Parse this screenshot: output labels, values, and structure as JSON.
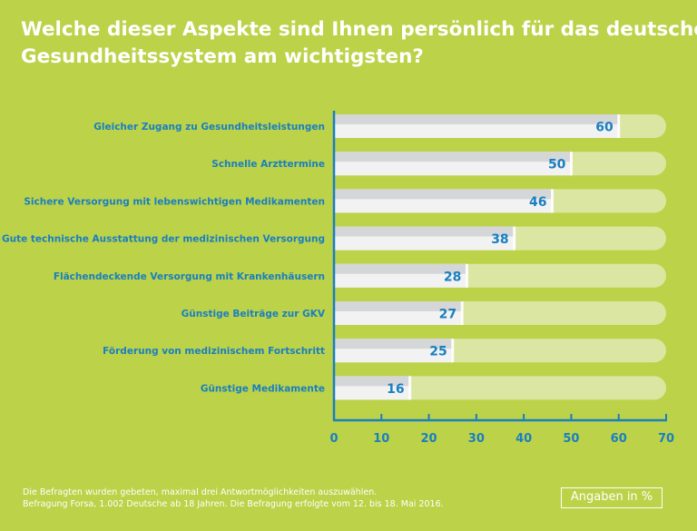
{
  "title": {
    "line1": "Welche dieser Aspekte sind Ihnen persönlich für das deutsche",
    "line2": "Gesundheitssystem am wichtigsten?"
  },
  "footnote": {
    "line1": "Die Befragten wurden gebeten, maximal drei Antwortmöglichkeiten auszuwählen.",
    "line2": "Befragung Forsa, 1.002 Deutsche ab 18 Jahren. Die Befragung erfolgte vom 12. bis 18. Mai 2016."
  },
  "units_label": "Angaben in %",
  "colors": {
    "background": "#bcd248",
    "label_text": "#1a7fc1",
    "axis": "#1a7fc1",
    "bar_fill": "#f2f2f2",
    "bar_stripe": "#d4d6d8",
    "track": "#dbe6a2",
    "title_text": "#ffffff"
  },
  "chart_data": {
    "type": "bar",
    "orientation": "horizontal",
    "categories": [
      "Gleicher Zugang zu Gesundheitsleistungen",
      "Schnelle Arzttermine",
      "Sichere Versorgung mit lebenswichtigen Medikamenten",
      "Gute technische Ausstattung der medizinischen Versorgung",
      "Flächendeckende Versorgung mit Krankenhäusern",
      "Günstige Beiträge zur GKV",
      "Förderung von medizinischem Fortschritt",
      "Günstige Medikamente"
    ],
    "values": [
      60,
      50,
      46,
      38,
      28,
      27,
      25,
      16
    ],
    "xlim": [
      0,
      70
    ],
    "xticks": [
      0,
      10,
      20,
      30,
      40,
      50,
      60,
      70
    ],
    "grid": false
  }
}
